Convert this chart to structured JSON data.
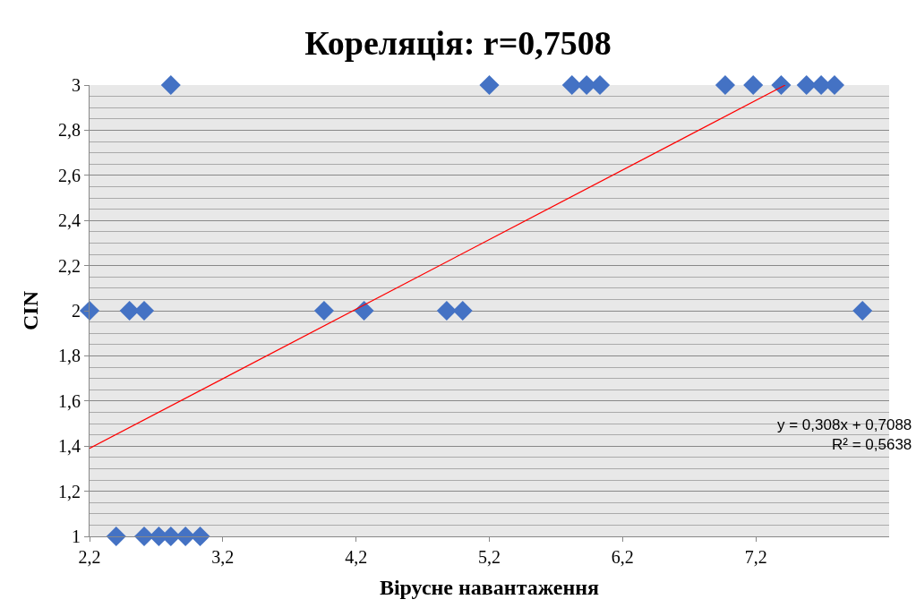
{
  "chart_data": {
    "type": "scatter",
    "title": "Кореляція: r=0,7508",
    "xlabel": "Вірусне навантаження",
    "ylabel": "CIN",
    "xlim": [
      2.2,
      8.2
    ],
    "ylim": [
      1,
      3
    ],
    "xticks": [
      {
        "value": 2.2,
        "label": "2,2"
      },
      {
        "value": 3.2,
        "label": "3,2"
      },
      {
        "value": 4.2,
        "label": "4,2"
      },
      {
        "value": 5.2,
        "label": "5,2"
      },
      {
        "value": 6.2,
        "label": "6,2"
      },
      {
        "value": 7.2,
        "label": "7,2"
      }
    ],
    "yticks": [
      {
        "value": 1,
        "label": "1"
      },
      {
        "value": 1.2,
        "label": "1,2"
      },
      {
        "value": 1.4,
        "label": "1,4"
      },
      {
        "value": 1.6,
        "label": "1,6"
      },
      {
        "value": 1.8,
        "label": "1,8"
      },
      {
        "value": 2,
        "label": "2"
      },
      {
        "value": 2.2,
        "label": "2,2"
      },
      {
        "value": 2.4,
        "label": "2,4"
      },
      {
        "value": 2.6,
        "label": "2,6"
      },
      {
        "value": 2.8,
        "label": "2,8"
      },
      {
        "value": 3,
        "label": "3"
      }
    ],
    "grid": "y",
    "marker": "diamond",
    "series": [
      {
        "color": "#4472c4",
        "x": [
          2.81,
          5.2,
          5.82,
          5.93,
          6.03,
          6.97,
          7.18,
          7.39,
          7.58,
          7.69,
          7.79,
          2.2,
          2.5,
          2.61,
          3.96,
          4.26,
          4.88,
          5.0,
          8.0,
          2.4,
          2.61,
          2.72,
          2.81,
          2.92,
          3.03
        ],
        "values": [
          3,
          3,
          3,
          3,
          3,
          3,
          3,
          3,
          3,
          3,
          3,
          2,
          2,
          2,
          2,
          2,
          2,
          2,
          2,
          1,
          1,
          1,
          1,
          1,
          1
        ]
      },
      {
        "type": "line",
        "marker": "none",
        "color": "#ff0000",
        "x": [
          2.2,
          7.42
        ],
        "values": [
          1.39,
          3.0
        ]
      }
    ],
    "annotations": [
      "y = 0,308x + 0,7088",
      "R² = 0,5638"
    ]
  }
}
